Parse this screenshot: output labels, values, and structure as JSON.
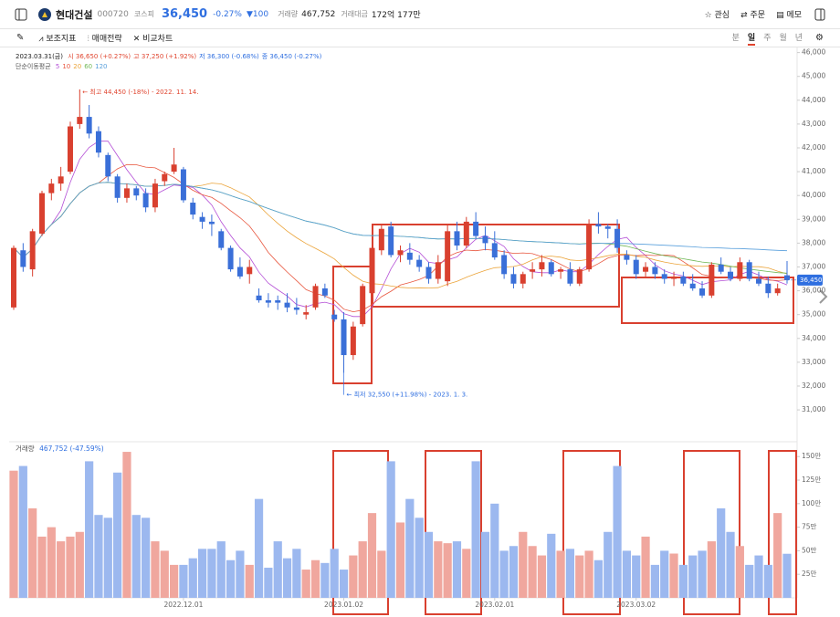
{
  "header": {
    "name": "현대건설",
    "code": "000720",
    "market": "코스피",
    "price": "36,450",
    "change_rate": "-0.27%",
    "change": "▼100",
    "volume_label": "거래량",
    "volume": "467,752",
    "amount_label": "거래대금",
    "amount": "172억 177만",
    "actions": [
      "관심",
      "주문",
      "메모"
    ]
  },
  "toolbar": {
    "tools": [
      "보조지표",
      "매매전략",
      "비교차트"
    ],
    "periods": [
      "분",
      "일",
      "주",
      "월",
      "년"
    ],
    "selected": 1
  },
  "chart_data": {
    "type": "candlestick",
    "date": "2023.03.31(금)",
    "ohlc_labels": [
      "시 36,650 (+0.27%)",
      "고 37,250 (+1.92%)",
      "저 36,300 (-0.68%)",
      "종 36,450 (-0.27%)"
    ],
    "ohlc_label_colors": [
      "#e0452f",
      "#e0452f",
      "#2f6fe0",
      "#2f6fe0"
    ],
    "ma_label": "단순이동평균",
    "ma": [
      {
        "period": 5,
        "color": "#b44fd6"
      },
      {
        "period": 10,
        "color": "#e8573f"
      },
      {
        "period": 20,
        "color": "#eba43a"
      },
      {
        "period": 60,
        "color": "#71b857"
      },
      {
        "period": 120,
        "color": "#5aa0dc"
      }
    ],
    "up_color": "#d9402f",
    "down_color": "#3a6fd8",
    "candles": [
      [
        35300,
        37900,
        35200,
        37800
      ],
      [
        37700,
        38000,
        36800,
        37000
      ],
      [
        36900,
        38600,
        36600,
        38500
      ],
      [
        38400,
        40200,
        38300,
        40100
      ],
      [
        40100,
        40700,
        39800,
        40500
      ],
      [
        40500,
        41200,
        40200,
        40800
      ],
      [
        41000,
        43100,
        40900,
        42900
      ],
      [
        43000,
        44450,
        42800,
        43300
      ],
      [
        43300,
        43800,
        42400,
        42600
      ],
      [
        42700,
        42900,
        41600,
        41800
      ],
      [
        41700,
        41800,
        40600,
        40800
      ],
      [
        40800,
        40900,
        39700,
        39900
      ],
      [
        39900,
        40500,
        39700,
        40300
      ],
      [
        40300,
        40400,
        39800,
        40000
      ],
      [
        40100,
        40300,
        39300,
        39500
      ],
      [
        39500,
        40700,
        39300,
        40500
      ],
      [
        40600,
        41000,
        40400,
        40900
      ],
      [
        41000,
        42000,
        40900,
        41300
      ],
      [
        41100,
        41200,
        39700,
        39800
      ],
      [
        39700,
        39900,
        39000,
        39200
      ],
      [
        39100,
        39300,
        38600,
        38900
      ],
      [
        38900,
        39200,
        38300,
        38800
      ],
      [
        38500,
        38600,
        37700,
        37800
      ],
      [
        37800,
        37900,
        36800,
        36900
      ],
      [
        37000,
        37400,
        36500,
        36600
      ],
      [
        36700,
        37300,
        36300,
        37000
      ],
      [
        35800,
        36100,
        35500,
        35600
      ],
      [
        35600,
        35900,
        35300,
        35500
      ],
      [
        35600,
        35800,
        35200,
        35500
      ],
      [
        35500,
        35900,
        35100,
        35300
      ],
      [
        35300,
        35700,
        35000,
        35200
      ],
      [
        35000,
        35400,
        34800,
        35100
      ],
      [
        35300,
        36300,
        35200,
        36200
      ],
      [
        36100,
        36300,
        35700,
        35800
      ],
      [
        35000,
        35200,
        34700,
        34800
      ],
      [
        34800,
        35100,
        32550,
        33300
      ],
      [
        33300,
        34700,
        33100,
        34500
      ],
      [
        34600,
        36300,
        34500,
        36200
      ],
      [
        35900,
        37900,
        35800,
        37800
      ],
      [
        37700,
        38800,
        37500,
        38600
      ],
      [
        38700,
        38900,
        37400,
        37500
      ],
      [
        37500,
        37900,
        37200,
        37700
      ],
      [
        37600,
        38000,
        37100,
        37300
      ],
      [
        37300,
        37500,
        36800,
        37000
      ],
      [
        37000,
        37200,
        36300,
        36500
      ],
      [
        36500,
        37500,
        36300,
        37200
      ],
      [
        36400,
        38800,
        36200,
        38500
      ],
      [
        38500,
        38900,
        37700,
        37900
      ],
      [
        37900,
        39100,
        37800,
        38900
      ],
      [
        38900,
        39300,
        38200,
        38300
      ],
      [
        38300,
        38700,
        37700,
        38000
      ],
      [
        38000,
        38500,
        37300,
        37400
      ],
      [
        37500,
        37700,
        36500,
        36700
      ],
      [
        36700,
        37000,
        36100,
        36300
      ],
      [
        36300,
        36800,
        36100,
        36700
      ],
      [
        36800,
        37200,
        36500,
        36900
      ],
      [
        36900,
        37500,
        36600,
        37200
      ],
      [
        37200,
        37300,
        36600,
        36700
      ],
      [
        36800,
        37000,
        36500,
        36900
      ],
      [
        36900,
        37200,
        36200,
        36300
      ],
      [
        36300,
        37000,
        36200,
        36900
      ],
      [
        36900,
        39000,
        36800,
        38800
      ],
      [
        38800,
        39300,
        38400,
        38700
      ],
      [
        38700,
        38800,
        38200,
        38600
      ],
      [
        38600,
        39000,
        37600,
        37800
      ],
      [
        37500,
        37700,
        37100,
        37300
      ],
      [
        37300,
        37500,
        36500,
        36700
      ],
      [
        36800,
        37200,
        36600,
        37000
      ],
      [
        37000,
        37200,
        36500,
        36700
      ],
      [
        36700,
        36900,
        36300,
        36500
      ],
      [
        36500,
        36800,
        36200,
        36600
      ],
      [
        36600,
        36800,
        36200,
        36300
      ],
      [
        36300,
        36700,
        36000,
        36100
      ],
      [
        36100,
        36400,
        35700,
        35800
      ],
      [
        35800,
        37200,
        35700,
        37100
      ],
      [
        37100,
        37400,
        36700,
        36800
      ],
      [
        36800,
        37000,
        36400,
        36500
      ],
      [
        36500,
        37400,
        36400,
        37200
      ],
      [
        37200,
        37300,
        36400,
        36500
      ],
      [
        36500,
        36800,
        36200,
        36300
      ],
      [
        36300,
        36600,
        35700,
        35900
      ],
      [
        35900,
        36300,
        35800,
        36100
      ],
      [
        36650,
        37250,
        36300,
        36450
      ]
    ],
    "ylim": [
      29700,
      46100
    ],
    "yticks": [
      {
        "value": 31000,
        "label": "31,000"
      },
      {
        "value": 32000,
        "label": "32,000"
      },
      {
        "value": 33000,
        "label": "33,000"
      },
      {
        "value": 34000,
        "label": "34,000"
      },
      {
        "value": 35000,
        "label": "35,000"
      },
      {
        "value": 36000,
        "label": "36,000"
      },
      {
        "value": 37000,
        "label": "37,000"
      },
      {
        "value": 38000,
        "label": "38,000"
      },
      {
        "value": 39000,
        "label": "39,000"
      },
      {
        "value": 40000,
        "label": "40,000"
      },
      {
        "value": 41000,
        "label": "41,000"
      },
      {
        "value": 42000,
        "label": "42,000"
      },
      {
        "value": 43000,
        "label": "43,000"
      },
      {
        "value": 44000,
        "label": "44,000"
      },
      {
        "value": 45000,
        "label": "45,000"
      },
      {
        "value": 46000,
        "label": "46,000"
      }
    ],
    "xticks": [
      {
        "value": 18,
        "label": "2022.12.01"
      },
      {
        "value": 35,
        "label": "2023.01.02"
      },
      {
        "value": 51,
        "label": "2023.02.01"
      },
      {
        "value": 66,
        "label": "2023.03.02"
      }
    ],
    "last_price": {
      "value": 36450,
      "label": "36,450"
    },
    "annotations": [
      {
        "text": "← 최고 44,450 (-18%) - 2022. 11. 14.",
        "candle": 7,
        "value": 44450,
        "color": "#e0452f"
      },
      {
        "text": "← 최저 32,550 (+11.98%) - 2023. 1. 3.",
        "candle": 35,
        "value": 32550,
        "color": "#2f6fe0"
      }
    ],
    "volume": {
      "title": "거래량",
      "summary": "467,752 (-47.59%)",
      "up_color": "#f0a79e",
      "down_color": "#9cb8ef",
      "values": [
        135,
        140,
        95,
        65,
        75,
        60,
        65,
        70,
        145,
        88,
        85,
        133,
        155,
        88,
        85,
        60,
        50,
        35,
        35,
        42,
        52,
        52,
        60,
        40,
        50,
        35,
        105,
        32,
        60,
        42,
        52,
        30,
        40,
        37,
        52,
        30,
        45,
        60,
        90,
        50,
        145,
        80,
        105,
        85,
        70,
        60,
        58,
        60,
        52,
        145,
        70,
        100,
        50,
        55,
        70,
        55,
        45,
        68,
        50,
        52,
        45,
        50,
        40,
        70,
        140,
        50,
        45,
        65,
        35,
        50,
        47,
        35,
        45,
        50,
        60,
        95,
        70,
        55,
        35,
        45,
        35,
        90,
        46.78
      ],
      "ylim": [
        0,
        157
      ],
      "yticks": [
        {
          "value": 25,
          "label": "25만"
        },
        {
          "value": 50,
          "label": "50만"
        },
        {
          "value": 75,
          "label": "75만"
        },
        {
          "value": 100,
          "label": "100만"
        },
        {
          "value": 125,
          "label": "125만"
        },
        {
          "value": 150,
          "label": "150만"
        }
      ]
    }
  }
}
